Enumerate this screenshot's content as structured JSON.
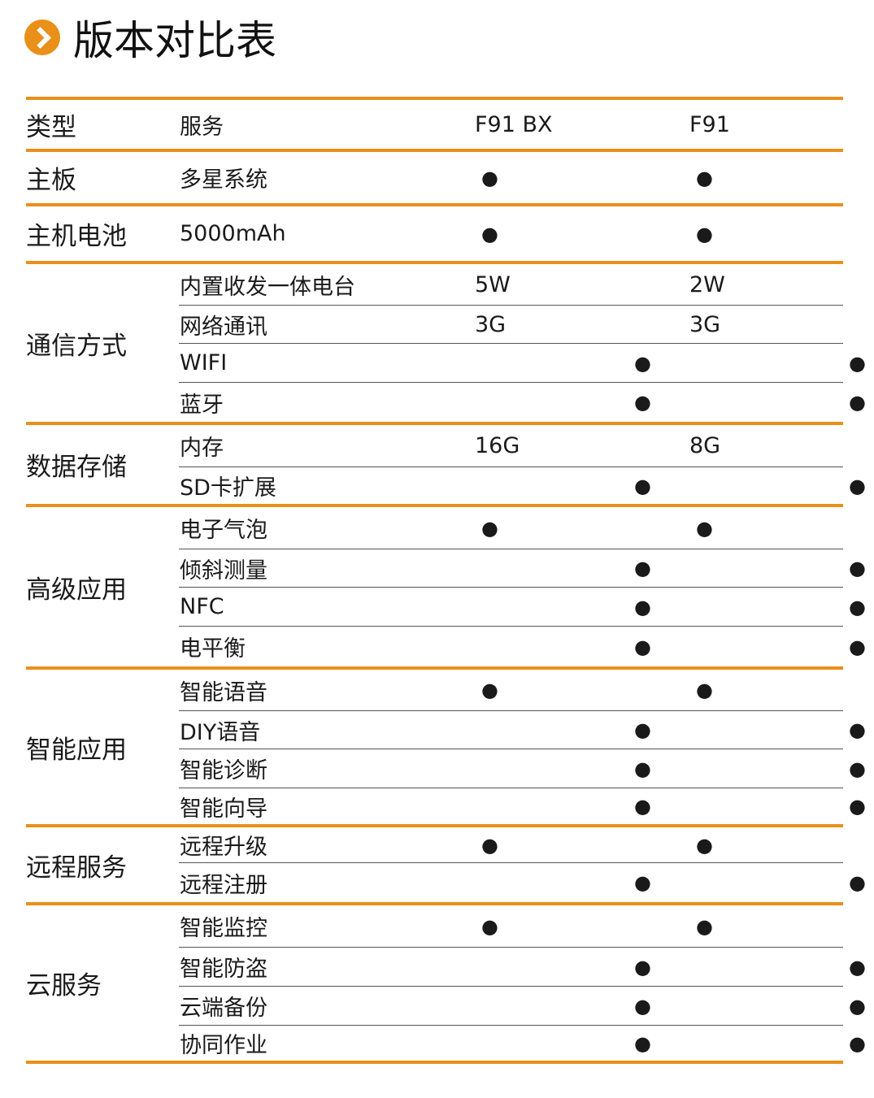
{
  "title": "版本对比表",
  "colors": {
    "accent": "#E8901A"
  },
  "header": {
    "type": "类型",
    "service": "服务",
    "col1": "F91 BX",
    "col2": "F91"
  },
  "groups": [
    {
      "category": "主板",
      "rows": [
        {
          "service": "多星系统",
          "f91bx": "●",
          "f91": "●"
        }
      ]
    },
    {
      "category": "主机电池",
      "rows": [
        {
          "service": "5000mAh",
          "f91bx": "●",
          "f91": "●"
        }
      ]
    },
    {
      "category": "通信方式",
      "rows": [
        {
          "service": "内置收发一体电台",
          "f91bx": "5W",
          "f91": "2W"
        },
        {
          "service": "网络通讯",
          "f91bx": "3G",
          "f91": "3G"
        },
        {
          "service": "WIFI",
          "f91bx": "●",
          "f91": "●"
        },
        {
          "service": "蓝牙",
          "f91bx": "●",
          "f91": "●"
        }
      ]
    },
    {
      "category": "数据存储",
      "rows": [
        {
          "service": "内存",
          "f91bx": "16G",
          "f91": "8G"
        },
        {
          "service": "SD卡扩展",
          "f91bx": "●",
          "f91": "●"
        }
      ]
    },
    {
      "category": "高级应用",
      "rows": [
        {
          "service": "电子气泡",
          "f91bx": "●",
          "f91": "●"
        },
        {
          "service": "倾斜测量",
          "f91bx": "●",
          "f91": "●"
        },
        {
          "service": "NFC",
          "f91bx": "●",
          "f91": "●"
        },
        {
          "service": "电平衡",
          "f91bx": "●",
          "f91": "●"
        }
      ]
    },
    {
      "category": "智能应用",
      "rows": [
        {
          "service": "智能语音",
          "f91bx": "●",
          "f91": "●"
        },
        {
          "service": "DIY语音",
          "f91bx": "●",
          "f91": "●"
        },
        {
          "service": "智能诊断",
          "f91bx": "●",
          "f91": "●"
        },
        {
          "service": "智能向导",
          "f91bx": "●",
          "f91": "●"
        }
      ]
    },
    {
      "category": "远程服务",
      "rows": [
        {
          "service": "远程升级",
          "f91bx": "●",
          "f91": "●"
        },
        {
          "service": "远程注册",
          "f91bx": "●",
          "f91": "●"
        }
      ]
    },
    {
      "category": "云服务",
      "rows": [
        {
          "service": "智能监控",
          "f91bx": "●",
          "f91": "●"
        },
        {
          "service": "智能防盗",
          "f91bx": "●",
          "f91": "●"
        },
        {
          "service": "云端备份",
          "f91bx": "●",
          "f91": "●"
        },
        {
          "service": "协同作业",
          "f91bx": "●",
          "f91": "●"
        }
      ]
    }
  ]
}
